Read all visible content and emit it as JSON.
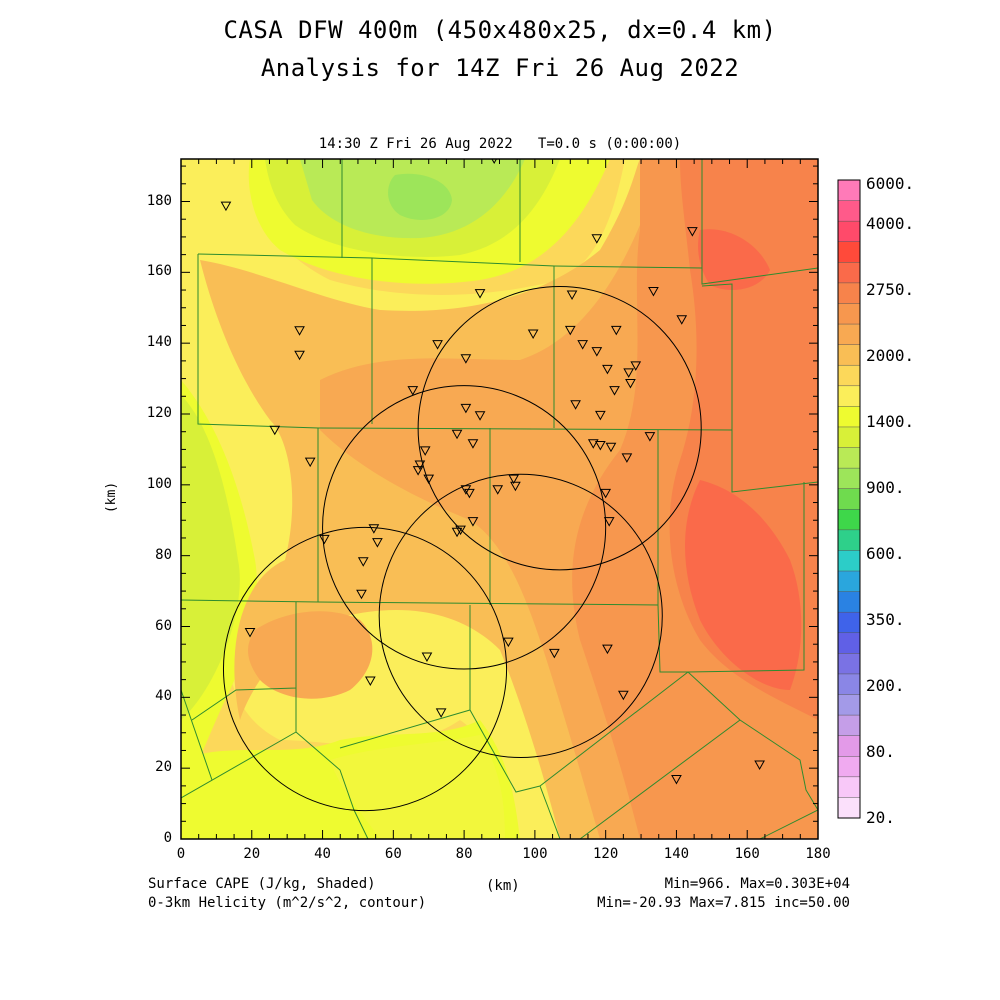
{
  "titles": {
    "line1": "CASA DFW 400m (450x480x25, dx=0.4 km)",
    "line2": "Analysis for 14Z Fri 26 Aug 2022",
    "subtitle": "14:30 Z Fri 26 Aug 2022   T=0.0 s (0:00:00)"
  },
  "axes": {
    "xlabel": "(km)",
    "ylabel": "(km)",
    "x_ticks": [
      "0",
      "20",
      "40",
      "60",
      "80",
      "100",
      "120",
      "140",
      "160",
      "180"
    ],
    "y_ticks": [
      "0",
      "20",
      "40",
      "60",
      "80",
      "100",
      "120",
      "140",
      "160",
      "180"
    ],
    "xlim": [
      0,
      180
    ],
    "ylim": [
      0,
      192
    ]
  },
  "footer": {
    "left1": "Surface CAPE (J/kg, Shaded)",
    "left2": "0-3km Helicity (m^2/s^2, contour)",
    "center": "(km)",
    "right1": "Min=966. Max=0.303E+04",
    "right2": "Min=-20.93 Max=7.815 inc=50.00"
  },
  "legend": {
    "labels": [
      "6000.",
      "4000.",
      "2750.",
      "2000.",
      "1400.",
      "900.",
      "600.",
      "350.",
      "200.",
      "80.",
      "20."
    ],
    "colors_top_to_bottom": [
      "#ff7ab8",
      "#ff5a8a",
      "#ff4a6a",
      "#ff4a3a",
      "#fa6a4a",
      "#f7834b",
      "#f7974e",
      "#f8a952",
      "#f9be55",
      "#fcd85a",
      "#fbee5a",
      "#eefb30",
      "#d8f038",
      "#b9ea56",
      "#9de55a",
      "#6fdb4e",
      "#3ed74a",
      "#2ed08a",
      "#2ccdc8",
      "#2aa6dd",
      "#2a82e3",
      "#3f63ea",
      "#6060e6",
      "#7a72e4",
      "#8a86e6",
      "#a39ae8",
      "#c59ee8",
      "#e39ae8",
      "#f0aaf0",
      "#f8c8f8",
      "#fbe0fb"
    ]
  },
  "map": {
    "field_colors": {
      "c1400": "#eefb30",
      "c1200": "#d8f038",
      "c1000": "#b9ea56",
      "c900": "#9de55a",
      "c1600": "#f2f73c",
      "c1800": "#fbee5a",
      "c2000": "#fcd85a",
      "c2200": "#f9be55",
      "c2400": "#f8a952",
      "c2600": "#f7974e",
      "c2750": "#f7834b",
      "c3000": "#fa6a4a"
    },
    "county_line_color": "#2e8b2e",
    "radar_sites": [
      {
        "cx": 107,
        "cy": 116,
        "r": 40
      },
      {
        "cx": 80,
        "cy": 88,
        "r": 40
      },
      {
        "cx": 52,
        "cy": 48,
        "r": 40
      },
      {
        "cx": 96,
        "cy": 63,
        "r": 40
      }
    ],
    "stations": [
      [
        12.7,
        178.7
      ],
      [
        33.5,
        143.5
      ],
      [
        33.5,
        136.6
      ],
      [
        26.5,
        115.4
      ],
      [
        36.5,
        106.4
      ],
      [
        40.5,
        84.6
      ],
      [
        54.5,
        87.6
      ],
      [
        55.5,
        83.7
      ],
      [
        51.5,
        78.3
      ],
      [
        51.0,
        69.1
      ],
      [
        53.5,
        44.6
      ],
      [
        19.5,
        58.3
      ],
      [
        69.5,
        51.4
      ],
      [
        73.5,
        35.6
      ],
      [
        65.5,
        126.6
      ],
      [
        72.5,
        139.6
      ],
      [
        80.5,
        135.6
      ],
      [
        84.5,
        154.0
      ],
      [
        80.5,
        121.6
      ],
      [
        84.5,
        119.5
      ],
      [
        78.0,
        114.3
      ],
      [
        82.5,
        111.6
      ],
      [
        69.0,
        109.6
      ],
      [
        67.5,
        105.6
      ],
      [
        67.0,
        104.0
      ],
      [
        70.0,
        101.6
      ],
      [
        80.5,
        98.6
      ],
      [
        81.5,
        97.6
      ],
      [
        79.0,
        87.2
      ],
      [
        78.0,
        86.6
      ],
      [
        82.5,
        89.6
      ],
      [
        89.5,
        98.6
      ],
      [
        94.0,
        101.6
      ],
      [
        94.5,
        99.6
      ],
      [
        88.5,
        192.0
      ],
      [
        99.5,
        142.6
      ],
      [
        110.0,
        143.6
      ],
      [
        110.5,
        153.6
      ],
      [
        113.5,
        139.6
      ],
      [
        117.5,
        137.6
      ],
      [
        111.5,
        122.6
      ],
      [
        118.5,
        119.6
      ],
      [
        120.5,
        132.6
      ],
      [
        122.5,
        126.6
      ],
      [
        126.5,
        131.6
      ],
      [
        128.5,
        133.6
      ],
      [
        127.0,
        128.6
      ],
      [
        123.0,
        143.6
      ],
      [
        116.5,
        111.6
      ],
      [
        118.5,
        111.1
      ],
      [
        121.5,
        110.6
      ],
      [
        126.0,
        107.6
      ],
      [
        132.5,
        113.6
      ],
      [
        120.0,
        97.6
      ],
      [
        121.0,
        89.6
      ],
      [
        117.5,
        169.5
      ],
      [
        133.5,
        154.6
      ],
      [
        144.5,
        171.5
      ],
      [
        141.5,
        146.6
      ],
      [
        92.5,
        55.6
      ],
      [
        105.5,
        52.4
      ],
      [
        120.5,
        53.6
      ],
      [
        125.0,
        40.6
      ],
      [
        140.0,
        16.8
      ],
      [
        163.5,
        20.9
      ]
    ]
  }
}
